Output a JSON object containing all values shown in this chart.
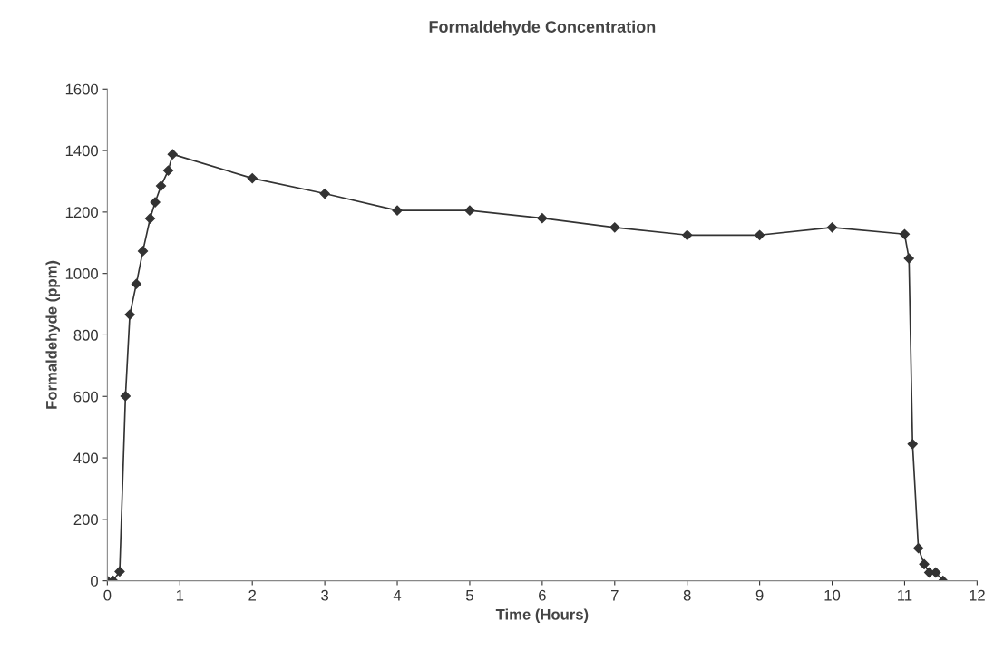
{
  "chart_data": {
    "type": "line",
    "title": "Formaldehyde Concentration",
    "xlabel": "Time (Hours)",
    "ylabel": "Formaldehyde (ppm)",
    "x": [
      0,
      0.08,
      0.17,
      0.25,
      0.31,
      0.4,
      0.49,
      0.59,
      0.66,
      0.74,
      0.84,
      0.9,
      2,
      3,
      4,
      5,
      6,
      7,
      8,
      9,
      10,
      11.0,
      11.06,
      11.11,
      11.19,
      11.27,
      11.34,
      11.43,
      11.53
    ],
    "series": [
      {
        "color": "#333333",
        "values": [
          0,
          0,
          30,
          601,
          866,
          966,
          1073,
          1179,
          1232,
          1285,
          1335,
          1388,
          1310,
          1260,
          1205,
          1205,
          1180,
          1150,
          1125,
          1125,
          1150,
          1128,
          1049,
          445,
          106,
          54,
          27,
          27,
          0
        ]
      }
    ],
    "xlim": [
      0,
      12
    ],
    "xticks": [
      0,
      1,
      2,
      3,
      4,
      5,
      6,
      7,
      8,
      9,
      10,
      11,
      12
    ],
    "ylim": [
      0,
      1600
    ],
    "yticks": [
      0,
      200,
      400,
      600,
      800,
      1000,
      1200,
      1400,
      1600
    ],
    "grid": false,
    "legend": false,
    "marker": "diamond",
    "line_style": "solid"
  }
}
